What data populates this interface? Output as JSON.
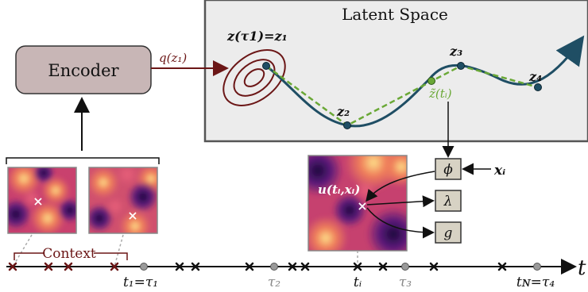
{
  "encoder": {
    "label": "Encoder",
    "posterior_label": "q(z₁)"
  },
  "latent_space": {
    "title": "Latent Space",
    "z_tau1_label": "z(τ1)=z₁",
    "points": [
      {
        "label": "z₁"
      },
      {
        "label": "z₂"
      },
      {
        "label": "z₃"
      },
      {
        "label": "z₄"
      }
    ],
    "interp_label": "z̃(tᵢ)"
  },
  "field_map": {
    "u_label": "u(tᵢ,xᵢ)"
  },
  "decoders": {
    "phi_label": "ϕ",
    "lambda_label": "λ",
    "g_label": "g",
    "x_input_label": "xᵢ"
  },
  "context": {
    "label": "Context"
  },
  "timeline": {
    "axis_label": "t",
    "tick_labels": [
      {
        "text": "t₁=τ₁",
        "color": "#111111"
      },
      {
        "text": "τ₂",
        "color": "#888888"
      },
      {
        "text": "tᵢ",
        "color": "#111111"
      },
      {
        "text": "τ₃",
        "color": "#888888"
      },
      {
        "text": "tɴ=τ₄",
        "color": "#111111"
      }
    ]
  },
  "colors": {
    "encoder_fill": "#c8b6b6",
    "latent_fill": "#ececec",
    "trajectory": "#1f4e64",
    "interp": "#6aa836",
    "posterior": "#6b1616",
    "point_fill": "#1f4e64",
    "grey_marker": "#9a9a9a"
  }
}
